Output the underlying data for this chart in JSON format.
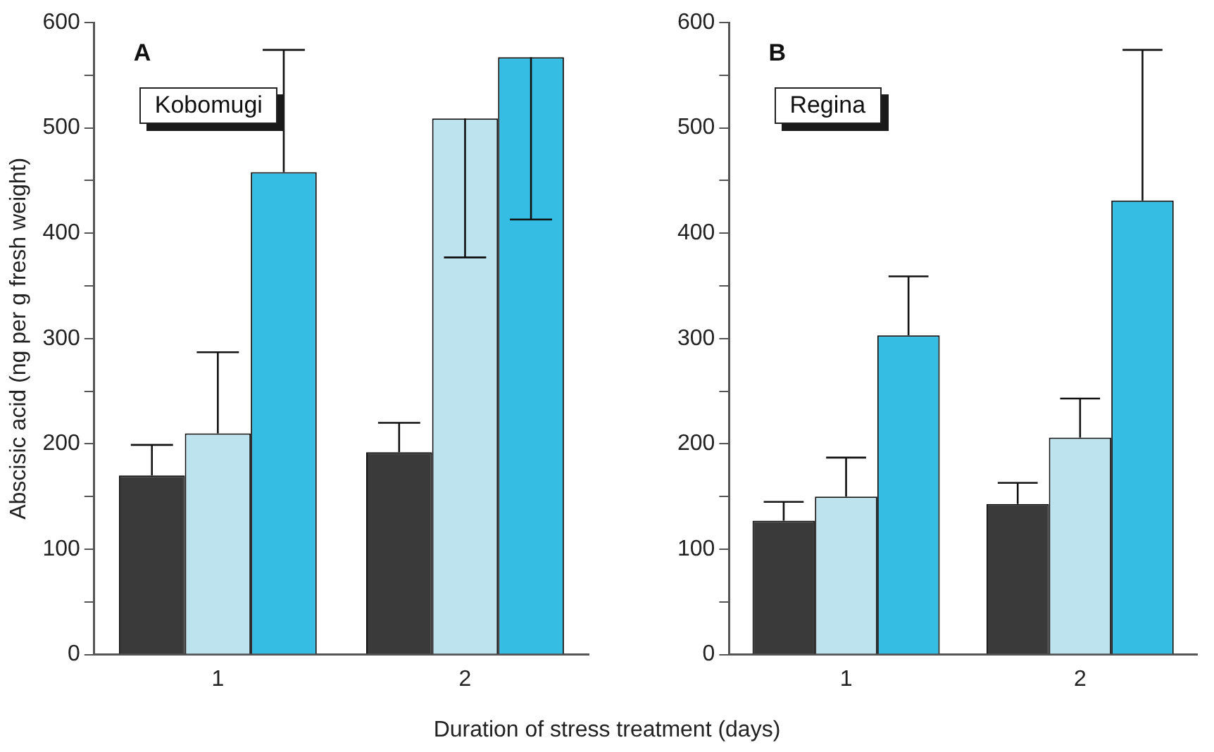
{
  "chart_data": [
    {
      "type": "bar",
      "ylabel": "Abscisic acid (ng per g fresh weight)",
      "xlabel": "Duration of stress treatment (days)",
      "annotations": [
        "A",
        "Kobomugi"
      ],
      "categories": [
        "1",
        "2"
      ],
      "ylim": [
        0,
        600
      ],
      "yticks": [
        0,
        {
          "value": 50,
          "label": null
        },
        100,
        {
          "value": 150,
          "label": null
        },
        200,
        {
          "value": 250,
          "label": null
        },
        300,
        {
          "value": 350,
          "label": null
        },
        400,
        {
          "value": 450,
          "label": null
        },
        500,
        {
          "value": 550,
          "label": null
        },
        600
      ],
      "grid": false,
      "legend": false,
      "series": [
        {
          "color": "#3a3a3a",
          "values": [
            170,
            192
          ],
          "errors": [
            [
              170,
              199
            ],
            [
              192,
              220
            ]
          ]
        },
        {
          "color": "#bde3ee",
          "values": [
            210,
            509
          ],
          "errors": [
            [
              210,
              287
            ],
            [
              377,
              509
            ]
          ]
        },
        {
          "color": "#35bde3",
          "values": [
            458,
            567
          ],
          "errors": [
            [
              458,
              574
            ],
            [
              413,
              567
            ]
          ]
        }
      ]
    },
    {
      "type": "bar",
      "annotations": [
        "B",
        "Regina"
      ],
      "categories": [
        "1",
        "2"
      ],
      "ylim": [
        0,
        600
      ],
      "yticks": [
        0,
        {
          "value": 50,
          "label": null
        },
        100,
        {
          "value": 150,
          "label": null
        },
        200,
        {
          "value": 250,
          "label": null
        },
        300,
        {
          "value": 350,
          "label": null
        },
        400,
        {
          "value": 450,
          "label": null
        },
        500,
        {
          "value": 550,
          "label": null
        },
        600
      ],
      "grid": false,
      "legend": false,
      "series": [
        {
          "color": "#3a3a3a",
          "values": [
            127,
            143
          ],
          "errors": [
            [
              127,
              145
            ],
            [
              143,
              163
            ]
          ]
        },
        {
          "color": "#bde3ee",
          "values": [
            150,
            206
          ],
          "errors": [
            [
              150,
              187
            ],
            [
              206,
              243
            ]
          ]
        },
        {
          "color": "#35bde3",
          "values": [
            303,
            431
          ],
          "errors": [
            [
              303,
              359
            ],
            [
              431,
              574
            ]
          ]
        }
      ]
    }
  ]
}
